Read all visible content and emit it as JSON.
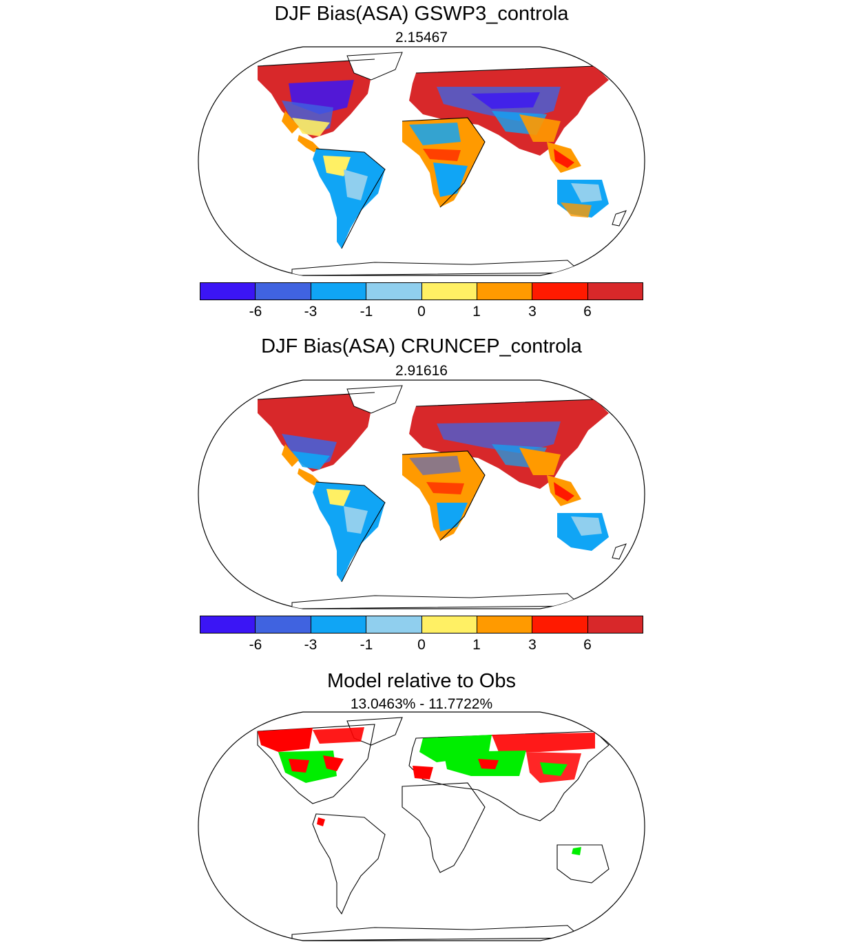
{
  "panels": [
    {
      "title": "DJF Bias(ASA) GSWP3_controla",
      "subtitle": "2.15467"
    },
    {
      "title": "DJF Bias(ASA) CRUNCEP_controla",
      "subtitle": "2.91616"
    },
    {
      "title": "Model relative to Obs",
      "subtitle": "13.0463% - 11.7722%"
    }
  ],
  "colorbar": {
    "colors": [
      "#3b15f5",
      "#4063e0",
      "#10a5f5",
      "#90cfee",
      "#fff064",
      "#ff9a00",
      "#ff1a00",
      "#d8282a"
    ],
    "labels": [
      "-6",
      "-3",
      "-1",
      "0",
      "1",
      "3",
      "6"
    ]
  },
  "relative_map_colors": {
    "worse": "#ff0000",
    "better": "#00ee00"
  }
}
